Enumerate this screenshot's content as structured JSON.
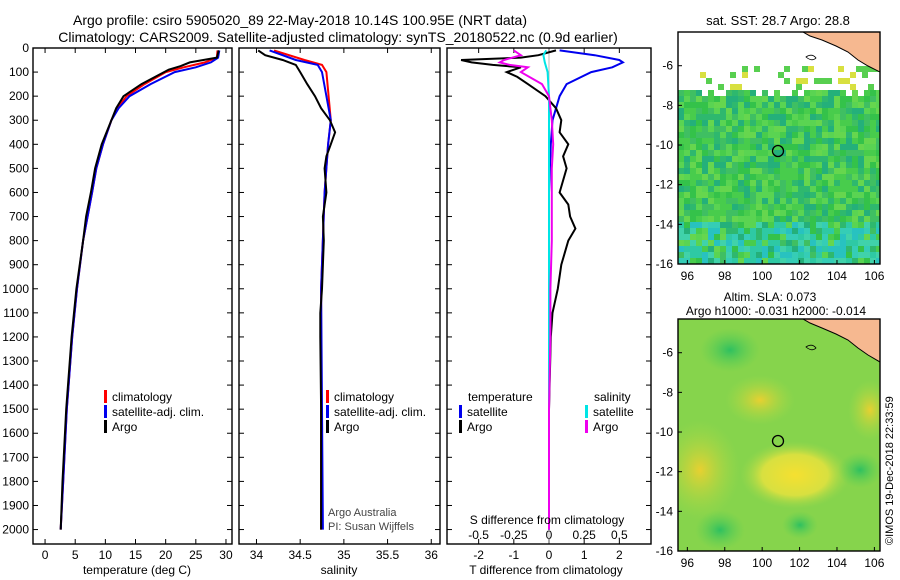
{
  "header": {
    "title_line1": "Argo profile: csiro 5905020_89 22-May-2018 10.14S 100.95E (NRT data)",
    "title_line2": "Climatology: CARS2009. Satellite-adjusted climatology: synTS_20180522.nc (0.9d earlier)"
  },
  "colors": {
    "climatology": "#ff0000",
    "satellite": "#0000ee",
    "argo": "#000000",
    "sal_satellite": "#00e5e5",
    "sal_argo": "#ee00ee"
  },
  "chart_data": [
    {
      "type": "line",
      "xlabel": "temperature (deg C)",
      "xlim": [
        -2,
        31
      ],
      "ylim": [
        0,
        2060
      ],
      "xticks": [
        0,
        5,
        10,
        15,
        20,
        25,
        30
      ],
      "yticks": [
        0,
        100,
        200,
        300,
        400,
        500,
        600,
        700,
        800,
        900,
        1000,
        1100,
        1200,
        1300,
        1400,
        1500,
        1600,
        1700,
        1800,
        1900,
        2000
      ],
      "legend": [
        "climatology",
        "satellite-adj. clim.",
        "Argo"
      ],
      "series": [
        {
          "name": "climatology",
          "depth": [
            10,
            40,
            60,
            80,
            100,
            150,
            200,
            250,
            300,
            400,
            500,
            600,
            800,
            1000,
            1200,
            1500,
            1800,
            2000
          ],
          "values": [
            28.6,
            28.5,
            26.5,
            23.0,
            20.0,
            16.5,
            13.5,
            12.0,
            11.0,
            9.6,
            8.5,
            7.8,
            6.3,
            5.3,
            4.5,
            3.6,
            3.0,
            2.6
          ]
        },
        {
          "name": "satellite-adj. clim.",
          "depth": [
            10,
            40,
            60,
            80,
            100,
            150,
            200,
            250,
            300,
            400,
            500,
            600,
            800,
            1000,
            1200,
            1500,
            1800,
            2000
          ],
          "values": [
            28.9,
            28.7,
            27.5,
            25.0,
            21.5,
            17.5,
            14.0,
            12.2,
            11.0,
            9.6,
            8.5,
            7.8,
            6.3,
            5.3,
            4.5,
            3.6,
            3.0,
            2.6
          ]
        },
        {
          "name": "Argo",
          "depth": [
            10,
            40,
            60,
            75,
            90,
            110,
            150,
            200,
            250,
            300,
            400,
            500,
            600,
            700,
            800,
            1000,
            1200,
            1500,
            1800,
            2000
          ],
          "values": [
            28.8,
            28.5,
            24.0,
            22.5,
            20.5,
            19.0,
            16.0,
            13.0,
            11.8,
            11.0,
            9.4,
            8.3,
            7.6,
            6.8,
            6.3,
            5.2,
            4.4,
            3.5,
            2.9,
            2.6
          ]
        }
      ]
    },
    {
      "type": "line",
      "xlabel": "salinity",
      "xlim": [
        33.8,
        36.1
      ],
      "ylim": [
        0,
        2060
      ],
      "xticks": [
        34,
        34.5,
        35,
        35.5,
        36
      ],
      "legend": [
        "climatology",
        "satellite-adj. clim.",
        "Argo"
      ],
      "annotation": [
        "Argo Australia",
        "PI: Susan Wijffels"
      ],
      "series": [
        {
          "name": "climatology",
          "depth": [
            10,
            50,
            70,
            100,
            300,
            400,
            600,
            1000,
            1500,
            2000
          ],
          "values": [
            34.2,
            34.55,
            34.75,
            34.8,
            34.85,
            34.82,
            34.78,
            34.74,
            34.74,
            34.74
          ]
        },
        {
          "name": "satellite-adj. clim.",
          "depth": [
            10,
            50,
            70,
            100,
            300,
            400,
            600,
            1000,
            1500,
            2000
          ],
          "values": [
            34.15,
            34.45,
            34.7,
            34.75,
            34.85,
            34.82,
            34.78,
            34.74,
            34.75,
            34.76
          ]
        },
        {
          "name": "Argo",
          "depth": [
            10,
            30,
            50,
            70,
            100,
            150,
            200,
            250,
            300,
            350,
            400,
            450,
            500,
            600,
            700,
            800,
            900,
            1000,
            1100,
            1200,
            1500,
            2000
          ],
          "values": [
            34.02,
            34.1,
            34.3,
            34.45,
            34.5,
            34.58,
            34.67,
            34.74,
            34.84,
            34.9,
            34.85,
            34.8,
            34.78,
            34.8,
            34.76,
            34.77,
            34.76,
            34.75,
            34.73,
            34.73,
            34.74,
            34.74
          ]
        }
      ]
    },
    {
      "type": "line",
      "xlabel": "T difference from climatology",
      "xlabel_top": "S difference from climatology",
      "xlim": [
        -2.9,
        2.9
      ],
      "ylim": [
        0,
        2060
      ],
      "xticks": [
        -2,
        -1,
        0,
        1,
        2
      ],
      "xticks_top": [
        "-0.5",
        "-0.25",
        "0",
        "0.25",
        "0.5"
      ],
      "legend_left": [
        "temperature",
        "satellite",
        "Argo"
      ],
      "legend_right": [
        "salinity",
        "satellite",
        "Argo"
      ],
      "series": [
        {
          "name": "T satellite",
          "depth": [
            10,
            30,
            50,
            60,
            80,
            100,
            150,
            200,
            300,
            400,
            600,
            1000,
            2000
          ],
          "values": [
            0.3,
            1.3,
            2.0,
            2.1,
            1.8,
            1.2,
            0.5,
            0.3,
            0.1,
            0.05,
            0.0,
            0.0,
            0.0
          ]
        },
        {
          "name": "T Argo",
          "depth": [
            10,
            30,
            40,
            50,
            60,
            70,
            80,
            100,
            120,
            150,
            200,
            250,
            300,
            350,
            400,
            450,
            500,
            600,
            650,
            700,
            750,
            800,
            850,
            900,
            1000,
            1100,
            1200,
            1500,
            2000
          ],
          "values": [
            0.2,
            -0.3,
            -0.8,
            -2.5,
            -2.2,
            -1.6,
            -0.8,
            -1.2,
            -0.9,
            -0.6,
            -0.1,
            0.2,
            0.35,
            0.3,
            0.55,
            0.4,
            0.5,
            0.3,
            0.55,
            0.6,
            0.75,
            0.55,
            0.45,
            0.35,
            0.25,
            0.1,
            0.05,
            0.0,
            0.0
          ]
        },
        {
          "name": "S satellite",
          "depth": [
            10,
            30,
            60,
            100,
            200,
            400,
            1000,
            2000
          ],
          "values": [
            -0.02,
            -0.04,
            -0.03,
            -0.01,
            0.0,
            0.0,
            0.0,
            0.0
          ]
        },
        {
          "name": "S Argo",
          "depth": [
            10,
            30,
            50,
            60,
            70,
            80,
            100,
            150,
            200,
            300,
            400,
            500,
            600,
            800,
            1000,
            1200,
            1500,
            2000
          ],
          "values": [
            -0.25,
            -0.2,
            -0.32,
            -0.35,
            -0.28,
            -0.15,
            -0.2,
            -0.05,
            0.0,
            0.02,
            0.03,
            0.02,
            0.02,
            0.02,
            0.01,
            0.01,
            0.0,
            0.0
          ]
        }
      ]
    },
    {
      "type": "heatmap",
      "title": "sat. SST: 28.7 Argo: 28.8",
      "xlim": [
        95.5,
        106.3
      ],
      "ylim": [
        -16,
        -4.3
      ],
      "xticks": [
        96,
        98,
        100,
        102,
        104,
        106
      ],
      "yticks": [
        -6,
        -8,
        -10,
        -12,
        -14,
        -16
      ],
      "profile_location": {
        "lon": 100.95,
        "lat": -10.14
      }
    },
    {
      "type": "heatmap",
      "title_line1": "Altim. SLA: 0.073",
      "title_line2": "Argo h1000: -0.031 h2000: -0.014",
      "xlim": [
        95.5,
        106.3
      ],
      "ylim": [
        -16,
        -4.3
      ],
      "xticks": [
        96,
        98,
        100,
        102,
        104,
        106
      ],
      "yticks": [
        -6,
        -8,
        -10,
        -12,
        -14,
        -16
      ],
      "profile_location": {
        "lon": 100.95,
        "lat": -10.14
      }
    }
  ],
  "watermark": "©IMOS 19-Dec-2018 22:33:59"
}
